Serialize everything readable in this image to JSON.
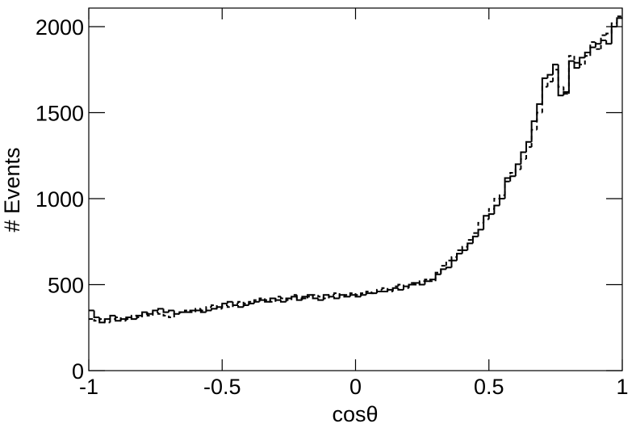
{
  "chart_data": {
    "type": "histogram",
    "xlabel": "cosθ",
    "ylabel": "# Events",
    "bins": [
      -1,
      -0.98,
      -0.96,
      -0.94,
      -0.92,
      -0.9,
      -0.88,
      -0.86,
      -0.84,
      -0.82,
      -0.8,
      -0.78,
      -0.76,
      -0.74,
      -0.72,
      -0.7,
      -0.68,
      -0.66,
      -0.64,
      -0.62,
      -0.6,
      -0.58,
      -0.56,
      -0.54,
      -0.52,
      -0.5,
      -0.48,
      -0.46,
      -0.44,
      -0.42,
      -0.4,
      -0.38,
      -0.36,
      -0.34,
      -0.32,
      -0.3,
      -0.28,
      -0.26,
      -0.24,
      -0.22,
      -0.2,
      -0.18,
      -0.16,
      -0.14,
      -0.12,
      -0.1,
      -0.08,
      -0.06,
      -0.04,
      -0.02,
      0,
      0.02,
      0.04,
      0.06,
      0.08,
      0.1,
      0.12,
      0.14,
      0.16,
      0.18,
      0.2,
      0.22,
      0.24,
      0.26,
      0.28,
      0.3,
      0.32,
      0.34,
      0.36,
      0.38,
      0.4,
      0.42,
      0.44,
      0.46,
      0.48,
      0.5,
      0.52,
      0.54,
      0.56,
      0.58,
      0.6,
      0.62,
      0.64,
      0.66,
      0.68,
      0.7,
      0.72,
      0.74,
      0.76,
      0.78,
      0.8,
      0.82,
      0.84,
      0.86,
      0.88,
      0.9,
      0.92,
      0.94,
      0.96,
      0.98,
      1
    ],
    "series": [
      {
        "color": "#000000",
        "dashed": false,
        "values": [
          350,
          310,
          280,
          300,
          320,
          290,
          300,
          310,
          300,
          320,
          340,
          330,
          350,
          360,
          340,
          350,
          330,
          340,
          340,
          350,
          350,
          340,
          350,
          360,
          370,
          390,
          400,
          380,
          370,
          380,
          390,
          400,
          410,
          400,
          420,
          410,
          400,
          420,
          430,
          410,
          430,
          440,
          420,
          410,
          440,
          430,
          420,
          440,
          430,
          440,
          430,
          440,
          450,
          450,
          460,
          460,
          470,
          480,
          470,
          490,
          500,
          510,
          500,
          520,
          530,
          560,
          590,
          600,
          640,
          680,
          700,
          740,
          780,
          820,
          900,
          910,
          960,
          1000,
          1120,
          1130,
          1200,
          1270,
          1330,
          1450,
          1550,
          1700,
          1720,
          1780,
          1600,
          1620,
          1800,
          1760,
          1820,
          1850,
          1880,
          1900,
          1920,
          1900,
          2000,
          2050
        ]
      },
      {
        "color": "#000000",
        "dashed": true,
        "values": [
          300,
          290,
          300,
          280,
          300,
          310,
          290,
          300,
          320,
          310,
          330,
          320,
          340,
          330,
          320,
          310,
          330,
          340,
          350,
          340,
          360,
          350,
          370,
          380,
          360,
          380,
          370,
          390,
          400,
          390,
          400,
          410,
          420,
          410,
          400,
          430,
          420,
          410,
          440,
          420,
          420,
          430,
          440,
          430,
          420,
          440,
          450,
          430,
          440,
          450,
          440,
          450,
          460,
          450,
          470,
          480,
          460,
          490,
          500,
          480,
          510,
          500,
          520,
          530,
          520,
          570,
          610,
          640,
          660,
          700,
          720,
          760,
          800,
          860,
          880,
          940,
          1000,
          1020,
          1100,
          1150,
          1170,
          1230,
          1300,
          1400,
          1500,
          1650,
          1680,
          1750,
          1650,
          1610,
          1830,
          1790,
          1780,
          1830,
          1910,
          1870,
          1950,
          1960,
          2020,
          2060
        ]
      }
    ],
    "xlim": [
      -1,
      1
    ],
    "xticks": [
      -1,
      -0.5,
      0,
      0.5,
      1
    ],
    "ylim": [
      0,
      2108
    ],
    "yticks": [
      0,
      500,
      1000,
      1500,
      2000
    ]
  }
}
